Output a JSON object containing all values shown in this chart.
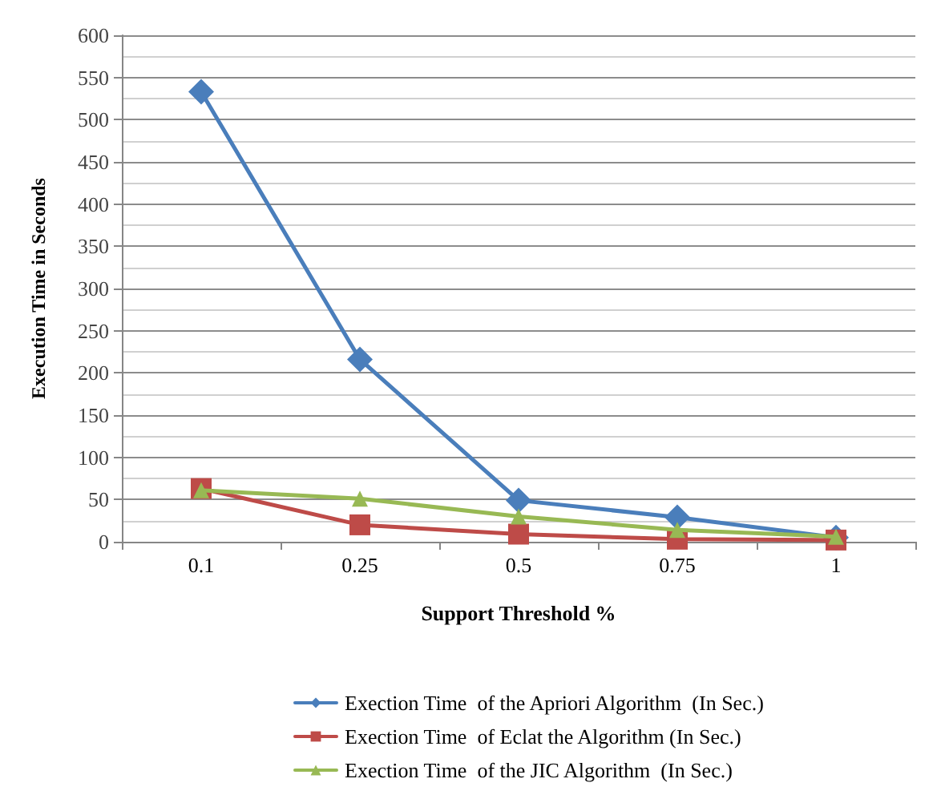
{
  "chart_data": {
    "type": "line",
    "xlabel": "Support Threshold %",
    "ylabel": "Execution Time in Seconds",
    "categories": [
      "0.1",
      "0.25",
      "0.5",
      "0.75",
      "1"
    ],
    "series": [
      {
        "name": "Exection Time  of the Apriori Algorithm  (In Sec.)",
        "color": "#4a7ebb",
        "marker": "diamond",
        "values": [
          533,
          216,
          49,
          29,
          5
        ]
      },
      {
        "name": "Exection Time  of Eclat the Algorithm (In Sec.)",
        "color": "#be4b48",
        "marker": "square",
        "values": [
          63,
          20,
          9,
          3,
          2
        ]
      },
      {
        "name": "Exection Time  of the JIC Algorithm  (In Sec.)",
        "color": "#98b954",
        "marker": "triangle",
        "values": [
          61,
          51,
          30,
          14,
          6
        ]
      }
    ],
    "ylim": [
      0,
      600
    ],
    "yticks": [
      0,
      50,
      100,
      150,
      200,
      250,
      300,
      350,
      400,
      450,
      500,
      550,
      600
    ],
    "grid": "y",
    "legend": "bottom",
    "line_style": "solid"
  }
}
